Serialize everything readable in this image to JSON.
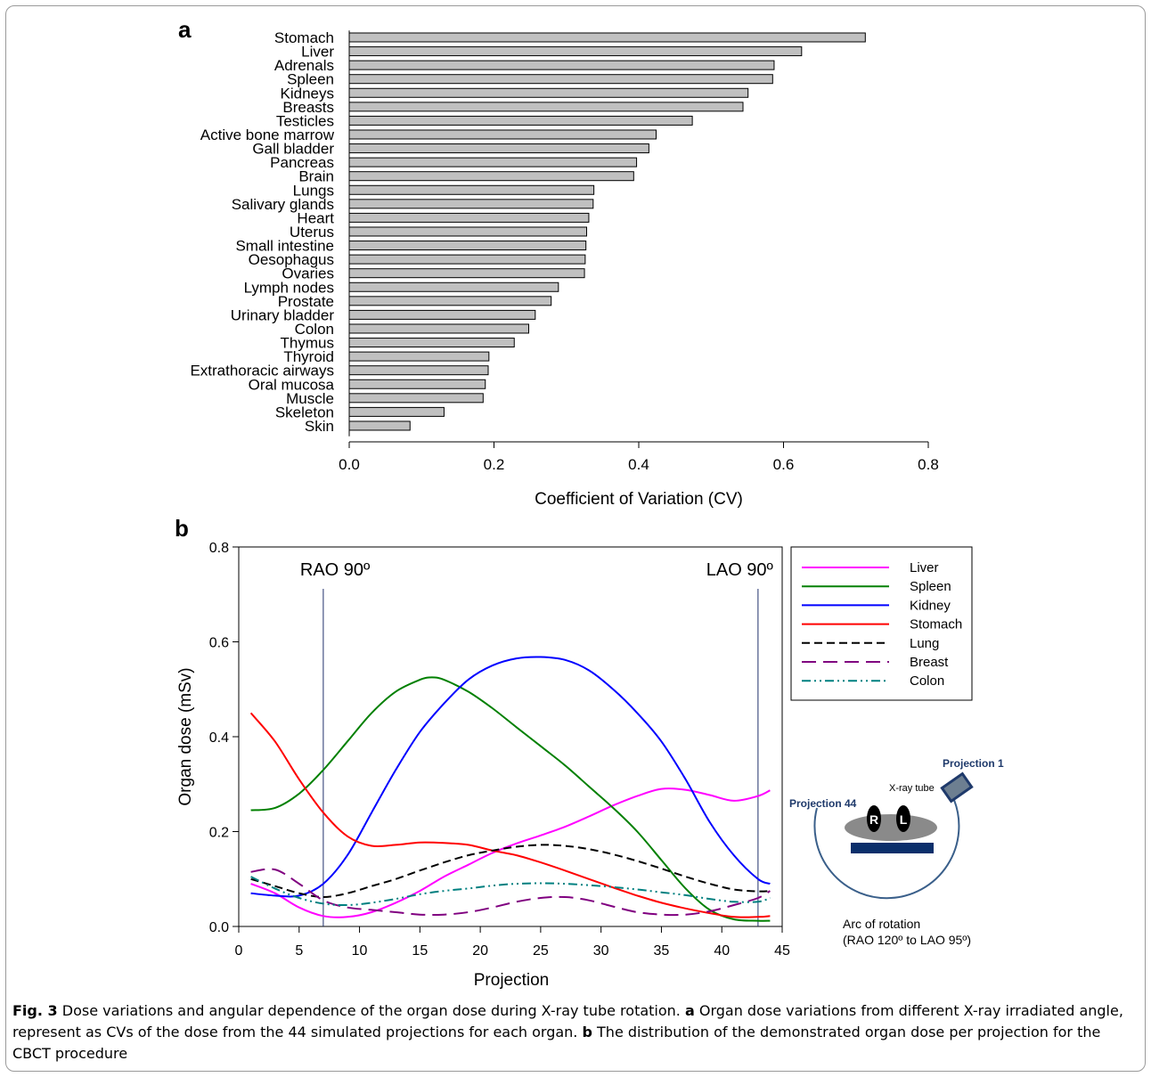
{
  "chart_data": [
    {
      "type": "bar",
      "orientation": "horizontal",
      "panel_label": "a",
      "title": "",
      "xlabel": "Coefficient of Variation (CV)",
      "ylabel": "",
      "xlim": [
        0,
        0.8
      ],
      "xticks": [
        "0.0",
        "0.2",
        "0.4",
        "0.6",
        "0.8"
      ],
      "bar_color": "#c0c0c0",
      "grid": false,
      "categories": [
        "Stomach",
        "Liver",
        "Adrenals",
        "Spleen",
        "Kidneys",
        "Breasts",
        "Testicles",
        "Active bone marrow",
        "Gall bladder",
        "Pancreas",
        "Brain",
        "Lungs",
        "Salivary glands",
        "Heart",
        "Uterus",
        "Small intestine",
        "Oesophagus",
        "Ovaries",
        "Lymph nodes",
        "Prostate",
        "Urinary bladder",
        "Colon",
        "Thymus",
        "Thyroid",
        "Extrathoracic airways",
        "Oral mucosa",
        "Muscle",
        "Skeleton",
        "Skin"
      ],
      "values": [
        0.713,
        0.625,
        0.587,
        0.585,
        0.551,
        0.544,
        0.474,
        0.424,
        0.414,
        0.397,
        0.393,
        0.338,
        0.337,
        0.331,
        0.328,
        0.327,
        0.326,
        0.325,
        0.289,
        0.279,
        0.257,
        0.248,
        0.228,
        0.193,
        0.192,
        0.188,
        0.185,
        0.131,
        0.084
      ]
    },
    {
      "type": "line",
      "panel_label": "b",
      "title": "",
      "xlabel": "Projection",
      "ylabel": "Organ dose (mSv)",
      "xlim": [
        0,
        45
      ],
      "ylim": [
        0,
        0.8
      ],
      "xticks": [
        "0",
        "5",
        "10",
        "15",
        "20",
        "25",
        "30",
        "35",
        "40",
        "45"
      ],
      "yticks": [
        "0.0",
        "0.2",
        "0.4",
        "0.6",
        "0.8"
      ],
      "grid": false,
      "legend": "top-right, outside plot",
      "vertical_markers": [
        {
          "x": 7,
          "label": "RAO 90º"
        },
        {
          "x": 43,
          "label": "LAO 90º"
        }
      ],
      "series": [
        {
          "name": "Liver",
          "color": "#ff00ff",
          "dash": "solid",
          "x": [
            1,
            3,
            5,
            7,
            9,
            11,
            13,
            15,
            17,
            19,
            21,
            23,
            25,
            27,
            29,
            31,
            33,
            35,
            37,
            39,
            41,
            43,
            44
          ],
          "y": [
            0.09,
            0.07,
            0.04,
            0.022,
            0.02,
            0.03,
            0.05,
            0.075,
            0.105,
            0.13,
            0.155,
            0.175,
            0.192,
            0.21,
            0.232,
            0.255,
            0.275,
            0.29,
            0.288,
            0.277,
            0.265,
            0.275,
            0.287
          ]
        },
        {
          "name": "Spleen",
          "color": "#008000",
          "dash": "solid",
          "x": [
            1,
            3,
            5,
            7,
            9,
            11,
            13,
            15,
            16,
            17,
            19,
            21,
            23,
            25,
            27,
            29,
            31,
            33,
            35,
            37,
            39,
            41,
            43,
            44
          ],
          "y": [
            0.245,
            0.25,
            0.28,
            0.33,
            0.39,
            0.45,
            0.495,
            0.52,
            0.525,
            0.52,
            0.495,
            0.46,
            0.42,
            0.38,
            0.34,
            0.295,
            0.25,
            0.2,
            0.14,
            0.08,
            0.035,
            0.015,
            0.012,
            0.012
          ]
        },
        {
          "name": "Kidney",
          "color": "#0000ff",
          "dash": "solid",
          "x": [
            1,
            3,
            5,
            7,
            9,
            11,
            13,
            15,
            17,
            19,
            21,
            23,
            25,
            27,
            29,
            31,
            33,
            35,
            37,
            39,
            41,
            43,
            44
          ],
          "y": [
            0.07,
            0.065,
            0.065,
            0.09,
            0.15,
            0.24,
            0.33,
            0.41,
            0.47,
            0.52,
            0.55,
            0.565,
            0.568,
            0.562,
            0.54,
            0.5,
            0.45,
            0.39,
            0.31,
            0.22,
            0.15,
            0.1,
            0.09
          ]
        },
        {
          "name": "Stomach",
          "color": "#ff0000",
          "dash": "solid",
          "x": [
            1,
            3,
            5,
            7,
            9,
            11,
            13,
            15,
            17,
            19,
            21,
            23,
            25,
            27,
            29,
            31,
            33,
            35,
            37,
            39,
            41,
            43,
            44
          ],
          "y": [
            0.45,
            0.39,
            0.31,
            0.24,
            0.19,
            0.17,
            0.172,
            0.177,
            0.176,
            0.172,
            0.16,
            0.15,
            0.135,
            0.118,
            0.1,
            0.082,
            0.065,
            0.05,
            0.038,
            0.028,
            0.02,
            0.02,
            0.022
          ]
        },
        {
          "name": "Lung",
          "color": "#000000",
          "dash": "long-dash",
          "x": [
            1,
            3,
            5,
            7,
            9,
            11,
            13,
            15,
            17,
            19,
            21,
            23,
            25,
            27,
            29,
            31,
            33,
            35,
            37,
            39,
            41,
            43,
            44
          ],
          "y": [
            0.1,
            0.085,
            0.07,
            0.062,
            0.07,
            0.085,
            0.1,
            0.118,
            0.135,
            0.15,
            0.16,
            0.168,
            0.172,
            0.17,
            0.163,
            0.152,
            0.138,
            0.122,
            0.105,
            0.09,
            0.078,
            0.074,
            0.075
          ]
        },
        {
          "name": "Breast",
          "color": "#800080",
          "dash": "extra-long-dash",
          "x": [
            1,
            3,
            5,
            7,
            9,
            11,
            13,
            15,
            17,
            19,
            21,
            23,
            25,
            27,
            29,
            31,
            33,
            35,
            37,
            39,
            41,
            43,
            44
          ],
          "y": [
            0.115,
            0.12,
            0.09,
            0.055,
            0.04,
            0.035,
            0.03,
            0.025,
            0.025,
            0.03,
            0.04,
            0.052,
            0.06,
            0.062,
            0.055,
            0.042,
            0.03,
            0.025,
            0.025,
            0.032,
            0.045,
            0.06,
            0.075
          ]
        },
        {
          "name": "Colon",
          "color": "#008080",
          "dash": "dash-dot-dot",
          "x": [
            1,
            3,
            5,
            7,
            9,
            11,
            13,
            15,
            17,
            19,
            21,
            23,
            25,
            27,
            29,
            31,
            33,
            35,
            37,
            39,
            41,
            43,
            44
          ],
          "y": [
            0.105,
            0.08,
            0.06,
            0.048,
            0.045,
            0.05,
            0.058,
            0.068,
            0.075,
            0.08,
            0.086,
            0.09,
            0.091,
            0.09,
            0.087,
            0.083,
            0.078,
            0.072,
            0.066,
            0.058,
            0.052,
            0.052,
            0.06
          ]
        }
      ]
    }
  ],
  "diagram": {
    "projection1": "Projection 1",
    "projection44": "Projection 44",
    "tube": "X-ray tube",
    "r": "R",
    "l": "L",
    "arc_line1": "Arc of rotation",
    "arc_line2": "(RAO 120º to LAO 95º)"
  },
  "caption": {
    "fig_label": "Fig. 3",
    "main": " Dose variations and angular dependence of the organ dose during X-ray tube rotation. ",
    "a_label": "a",
    "a_text": " Organ dose variations from different X-ray irradiated angle, represent as CVs of the dose from the 44 simulated projections for each organ. ",
    "b_label": "b",
    "b_text": " The distribution of the demonstrated organ dose per projection for the CBCT procedure"
  }
}
